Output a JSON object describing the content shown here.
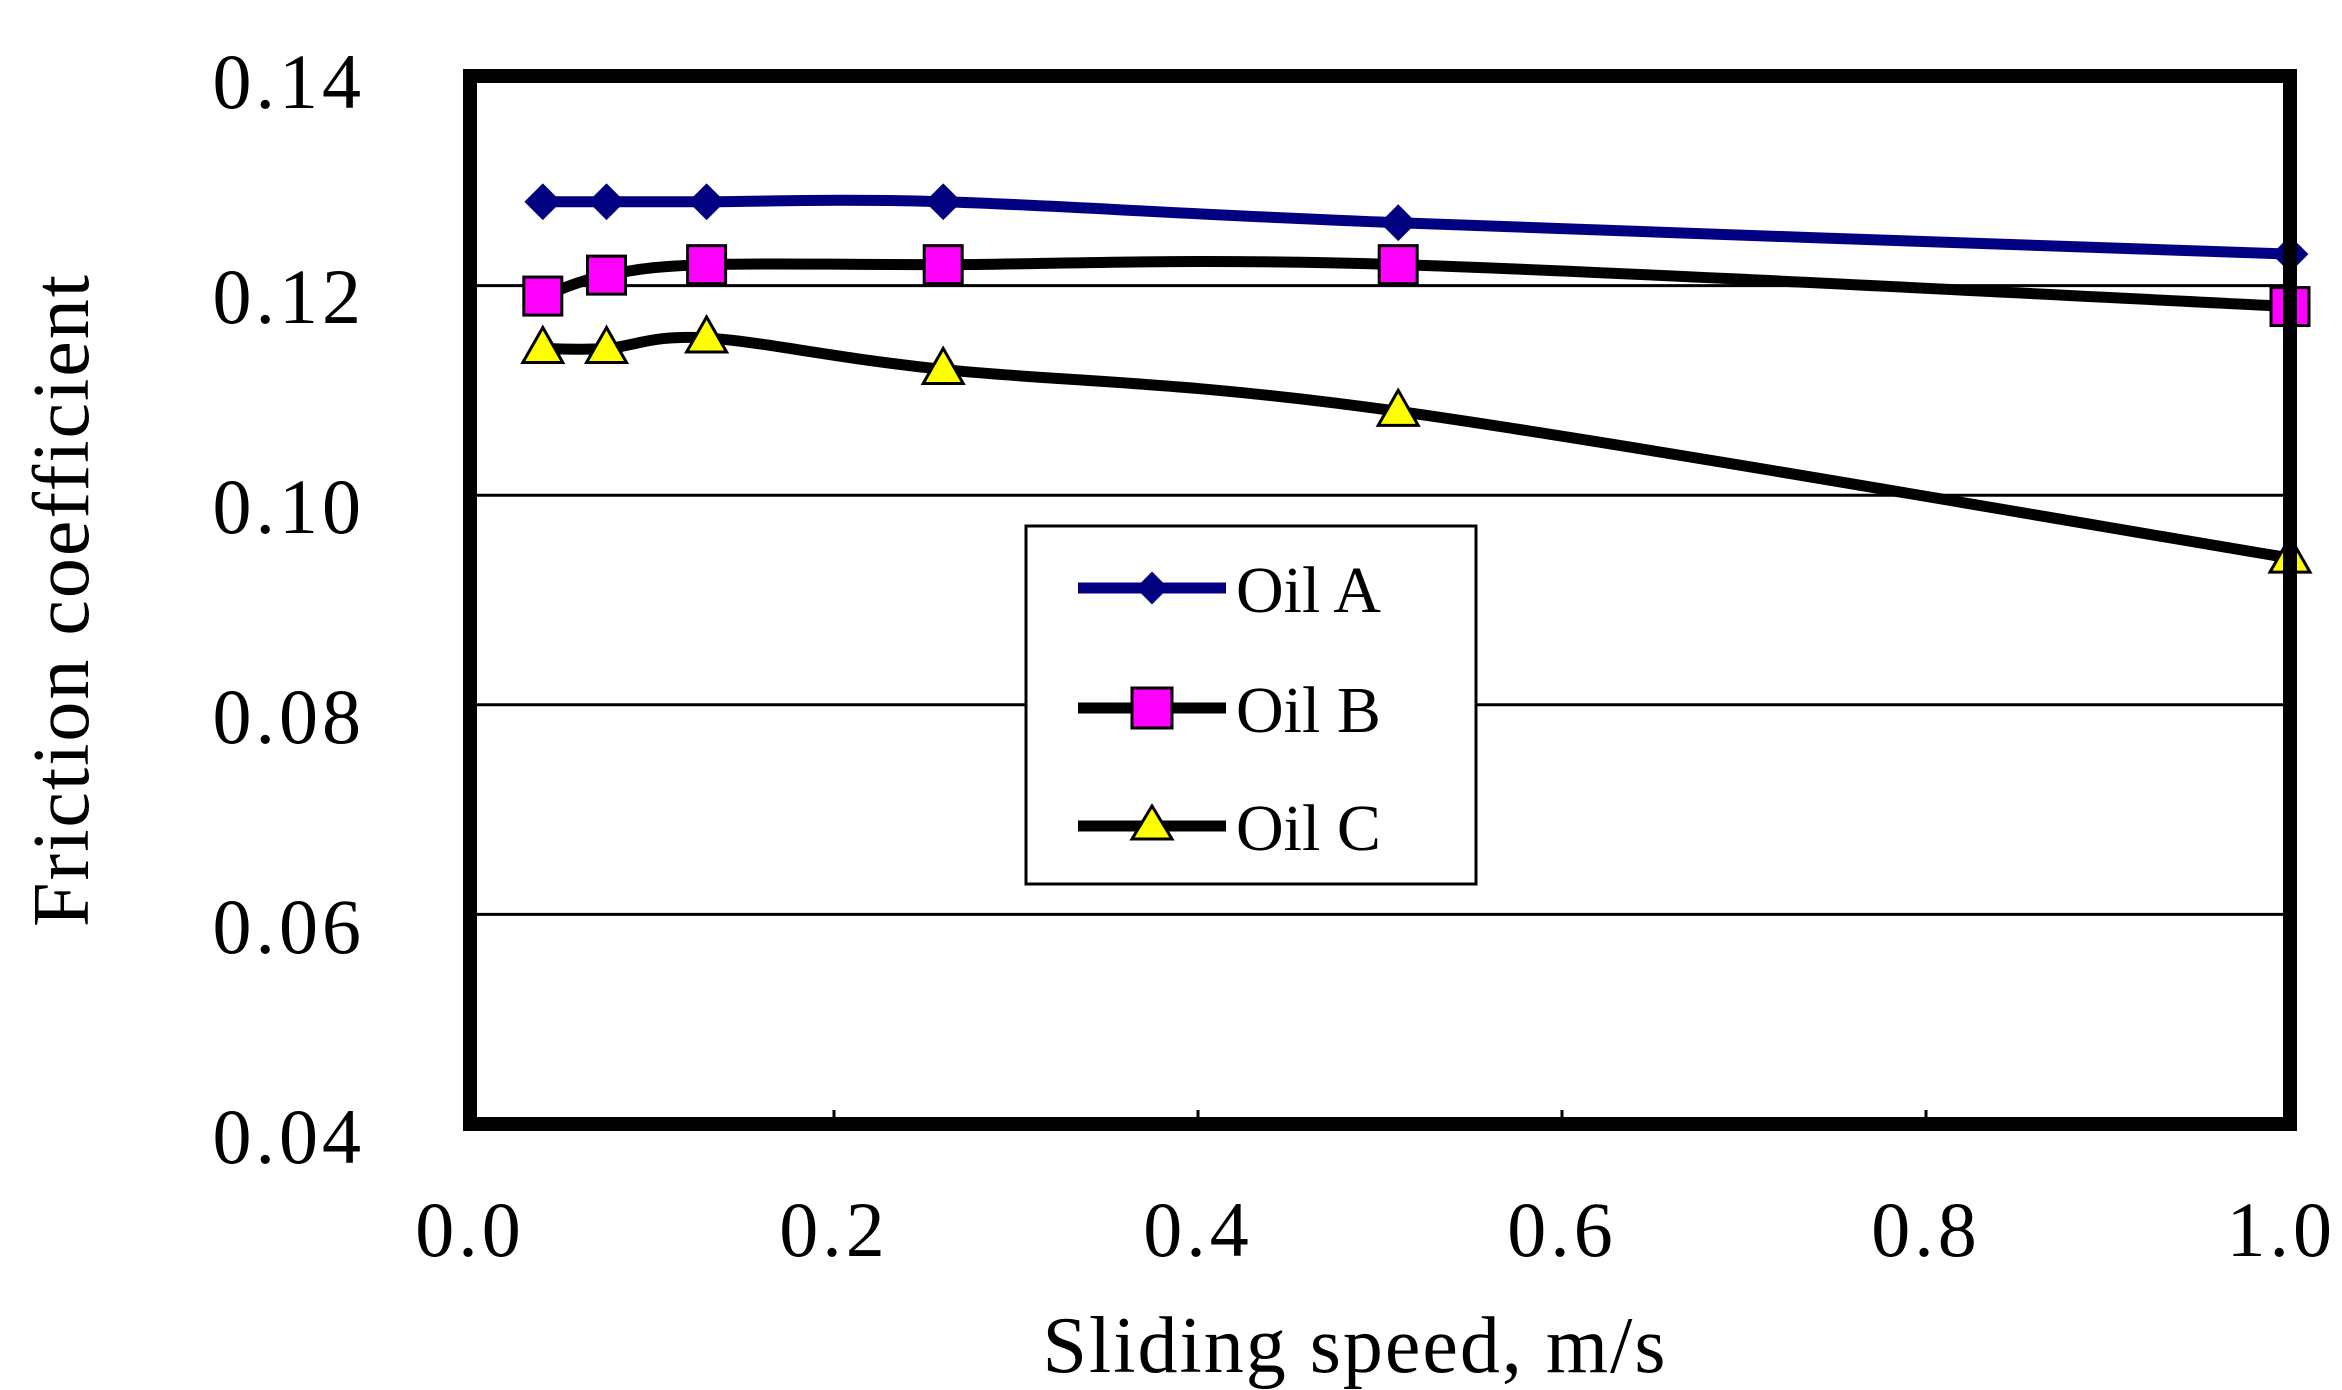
{
  "chart_data": {
    "type": "line",
    "title": "",
    "xlabel": "Sliding speed, m/s",
    "ylabel": "Friction coefficient",
    "xlim": [
      0.0,
      1.0
    ],
    "ylim": [
      0.04,
      0.14
    ],
    "x_ticks": [
      0.0,
      0.2,
      0.4,
      0.6,
      0.8,
      1.0
    ],
    "x_tick_labels": [
      "0.0",
      "0.2",
      "0.4",
      "0.6",
      "0.8",
      "1.0"
    ],
    "y_ticks": [
      0.04,
      0.06,
      0.08,
      0.1,
      0.12,
      0.14
    ],
    "y_tick_labels": [
      "0.04",
      "0.06",
      "0.08",
      "0.10",
      "0.12",
      "0.14"
    ],
    "grid": "horizontal",
    "legend_position": "center",
    "series": [
      {
        "name": "Oil A",
        "marker": "diamond",
        "color": "#000080",
        "marker_fill": "#000080",
        "x": [
          0.04,
          0.075,
          0.13,
          0.26,
          0.51,
          1.0
        ],
        "y": [
          0.128,
          0.128,
          0.128,
          0.128,
          0.126,
          0.123
        ]
      },
      {
        "name": "Oil B",
        "marker": "square",
        "color": "#000000",
        "marker_fill": "#ff00ff",
        "x": [
          0.04,
          0.075,
          0.13,
          0.26,
          0.51,
          1.0
        ],
        "y": [
          0.119,
          0.121,
          0.122,
          0.122,
          0.122,
          0.118
        ]
      },
      {
        "name": "Oil C",
        "marker": "triangle",
        "color": "#000000",
        "marker_fill": "#ffff00",
        "x": [
          0.04,
          0.075,
          0.13,
          0.26,
          0.51,
          1.0
        ],
        "y": [
          0.114,
          0.114,
          0.115,
          0.112,
          0.108,
          0.094
        ]
      }
    ]
  }
}
